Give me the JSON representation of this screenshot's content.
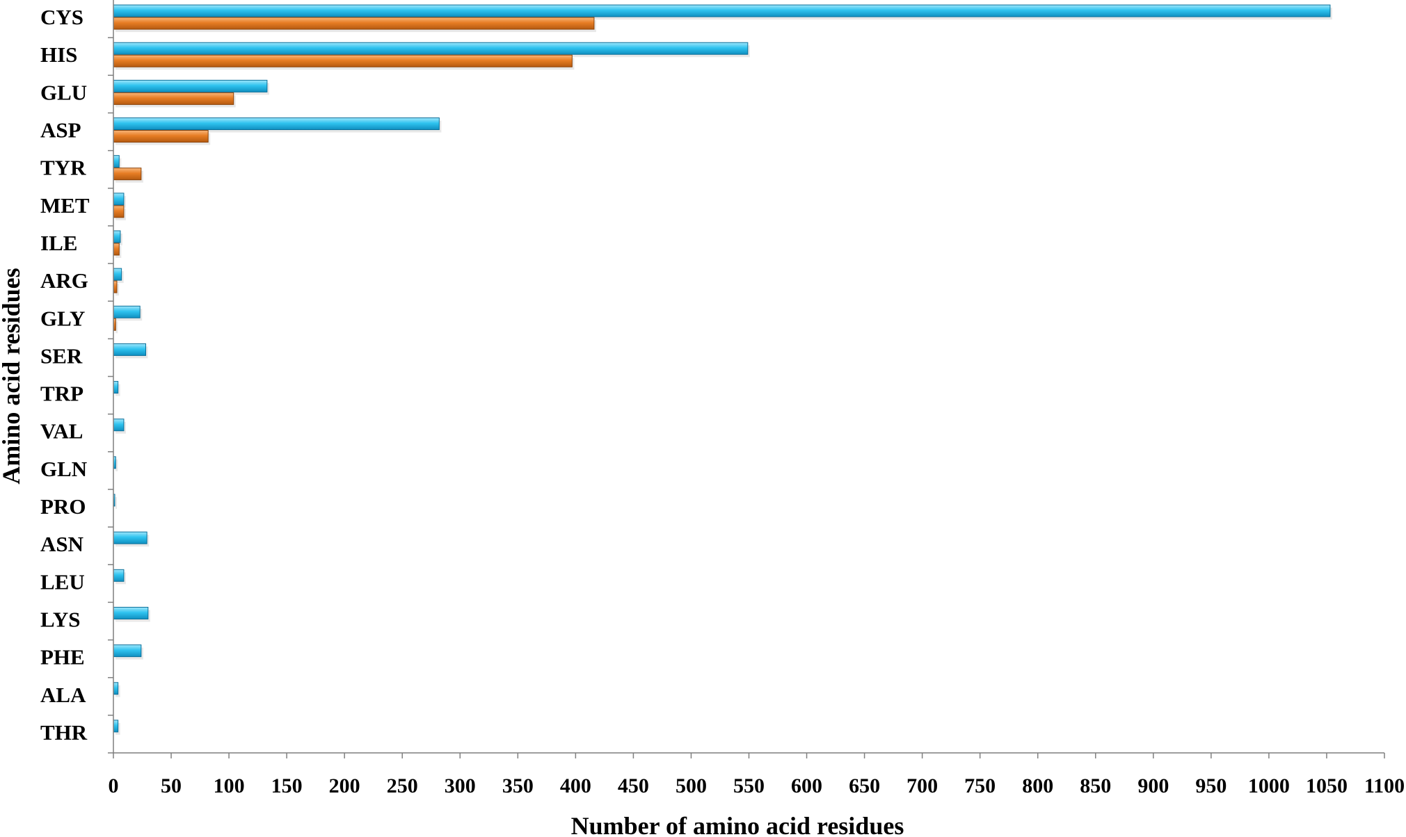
{
  "chart_data": {
    "type": "bar",
    "orientation": "horizontal",
    "xlabel": "Number of amino acid residues",
    "ylabel": "Amino acid residues",
    "xlim": [
      0,
      1100
    ],
    "xticks": [
      "0",
      "50",
      "100",
      "150",
      "200",
      "250",
      "300",
      "350",
      "400",
      "450",
      "500",
      "550",
      "600",
      "650",
      "700",
      "750",
      "800",
      "850",
      "900",
      "950",
      "1000",
      "1050",
      "1100"
    ],
    "categories": [
      "CYS",
      "HIS",
      "GLU",
      "ASP",
      "TYR",
      "MET",
      "ILE",
      "ARG",
      "GLY",
      "SER",
      "TRP",
      "VAL",
      "GLN",
      "PRO",
      "ASN",
      "LEU",
      "LYS",
      "PHE",
      "ALA",
      "THR"
    ],
    "series": [
      {
        "color": "#1fb8e8",
        "values": [
          1053,
          549,
          133,
          282,
          5,
          9,
          6,
          7,
          23,
          28,
          4,
          9,
          2,
          1,
          29,
          9,
          30,
          24,
          4,
          4
        ]
      },
      {
        "color": "#e0731c",
        "values": [
          416,
          397,
          104,
          82,
          24,
          9,
          5,
          3,
          2,
          0,
          0,
          0,
          0,
          0,
          0,
          0,
          0,
          0,
          0,
          0
        ]
      }
    ],
    "grid": false,
    "legend": "none"
  }
}
